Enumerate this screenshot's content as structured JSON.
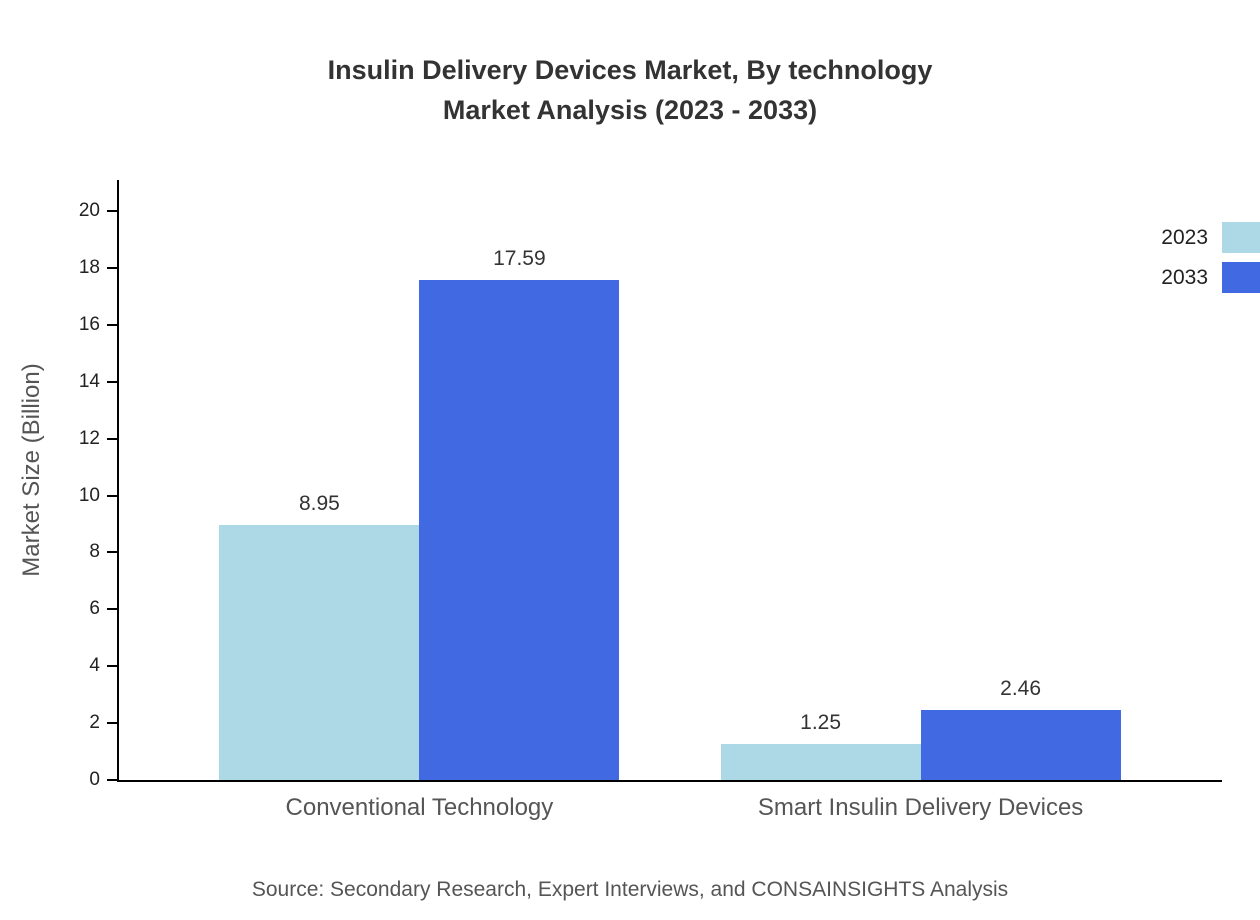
{
  "title": {
    "line1": "Insulin Delivery Devices Market, By technology",
    "line2": "Market Analysis (2023 - 2033)"
  },
  "source": "Source: Secondary Research, Expert Interviews, and CONSAINSIGHTS Analysis",
  "chart_data": {
    "type": "bar",
    "title": "Insulin Delivery Devices Market, By technology Market Analysis (2023 - 2033)",
    "categories": [
      "Conventional Technology",
      "Smart Insulin Delivery Devices"
    ],
    "series": [
      {
        "name": "2023",
        "color": "#ADD8E6",
        "values": [
          8.95,
          1.25
        ]
      },
      {
        "name": "2033",
        "color": "#4169E1",
        "values": [
          17.59,
          2.46
        ]
      }
    ],
    "xlabel": "",
    "ylabel": "Market Size (Billion)",
    "ylim": [
      0,
      20
    ],
    "yticks": [
      0,
      2,
      4,
      6,
      8,
      10,
      12,
      14,
      16,
      18,
      20
    ],
    "grid": false,
    "legend_position": "top-right"
  }
}
